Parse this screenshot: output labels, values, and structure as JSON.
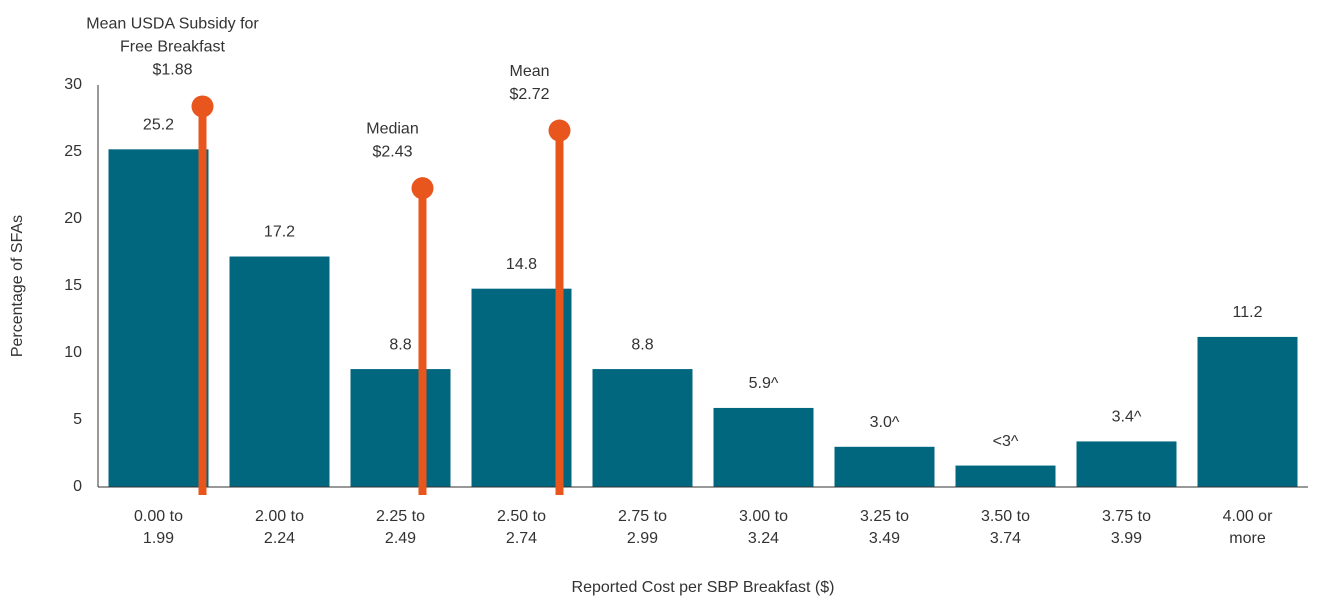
{
  "chart_data": {
    "type": "bar",
    "xlabel": "Reported Cost per SBP Breakfast ($)",
    "ylabel": "Percentage of SFAs",
    "categories": [
      "0.00 to\n1.99",
      "2.00 to\n2.24",
      "2.25 to\n2.49",
      "2.50 to\n2.74",
      "2.75 to\n2.99",
      "3.00 to\n3.24",
      "3.25 to\n3.49",
      "3.50 to\n3.74",
      "3.75 to\n3.99",
      "4.00 or\nmore"
    ],
    "values": [
      25.2,
      17.2,
      8.8,
      14.8,
      8.8,
      5.9,
      3.0,
      1.6,
      3.4,
      11.2
    ],
    "value_labels": [
      "25.2",
      "17.2",
      "8.8",
      "14.8",
      "8.8",
      "5.9^",
      "3.0^",
      "<3^",
      "3.4^",
      "11.2"
    ],
    "color": "#00677f",
    "ylim": [
      0,
      30
    ],
    "yticks": [
      0,
      5,
      10,
      15,
      20,
      25,
      30
    ],
    "grid": false,
    "annotations": [
      {
        "label": [
          "Mean USDA Subsidy for",
          "Free Breakfast",
          "$1.88"
        ],
        "value": 1.88,
        "y": 28.4,
        "color": "#e8561e"
      },
      {
        "label": [
          "Median",
          "$2.43"
        ],
        "value": 2.43,
        "y": 22.3,
        "color": "#e8561e"
      },
      {
        "label": [
          "Mean",
          "$2.72"
        ],
        "value": 2.72,
        "y": 26.6,
        "color": "#e8561e"
      }
    ]
  }
}
